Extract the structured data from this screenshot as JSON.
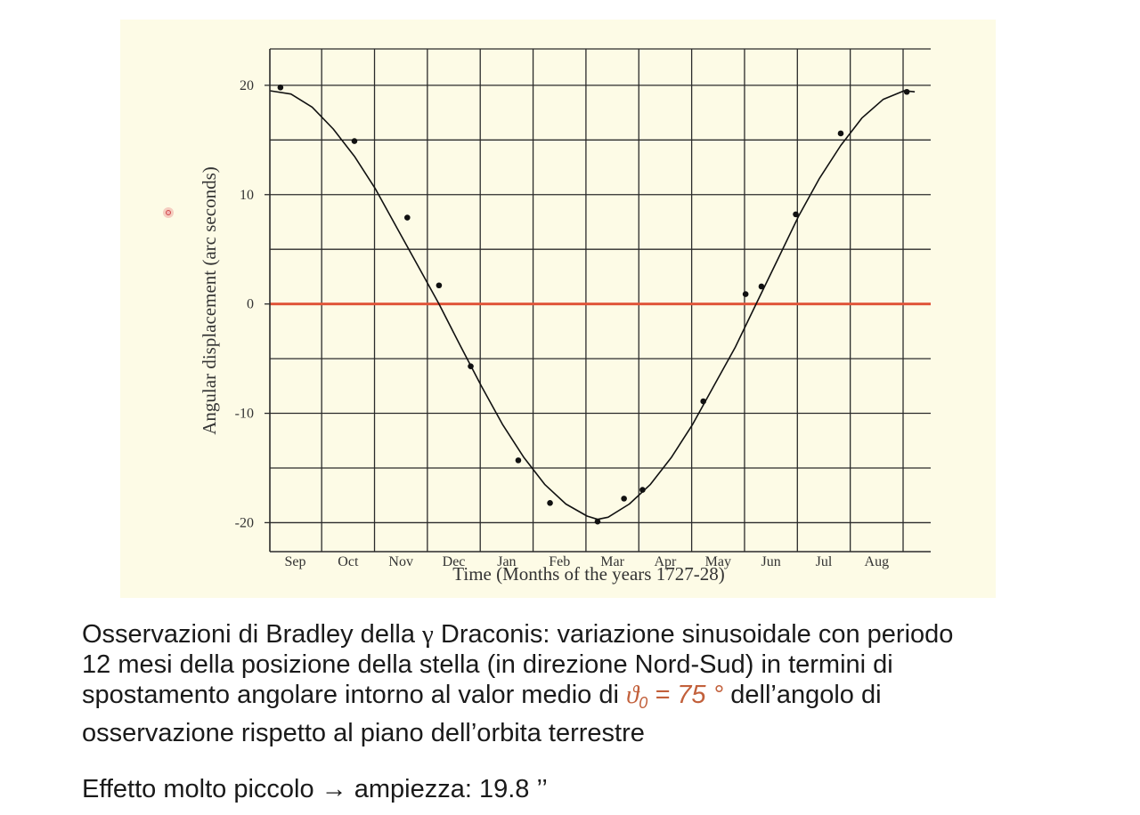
{
  "chart_data": {
    "type": "scatter",
    "xlabel": "Time  (Months of the years 1727-28)",
    "ylabel": "Angular displacement  (arc seconds)",
    "x_categories": [
      "Sep",
      "Oct",
      "Nov",
      "Dec",
      "Jan",
      "Feb",
      "Mar",
      "Apr",
      "May",
      "Jun",
      "Jul",
      "Aug"
    ],
    "xlim": [
      0,
      12.3
    ],
    "ylim": [
      -22,
      23
    ],
    "yticks": [
      20,
      10,
      0,
      -10,
      -20
    ],
    "ytick_labels": [
      "20",
      "10",
      "0",
      "-10",
      "-20"
    ],
    "grid": true,
    "reference_line": {
      "y": 0,
      "color": "#e0553a"
    },
    "series": [
      {
        "type": "scatter",
        "points": [
          {
            "x": 0.2,
            "y": 19.8
          },
          {
            "x": 1.6,
            "y": 14.9
          },
          {
            "x": 2.6,
            "y": 7.9
          },
          {
            "x": 3.2,
            "y": 1.7
          },
          {
            "x": 3.8,
            "y": -5.7
          },
          {
            "x": 4.7,
            "y": -14.3
          },
          {
            "x": 5.3,
            "y": -18.2
          },
          {
            "x": 6.2,
            "y": -19.9
          },
          {
            "x": 6.7,
            "y": -17.8
          },
          {
            "x": 7.05,
            "y": -17.0
          },
          {
            "x": 8.2,
            "y": -8.9
          },
          {
            "x": 9.0,
            "y": 0.9
          },
          {
            "x": 9.3,
            "y": 1.6
          },
          {
            "x": 9.95,
            "y": 8.2
          },
          {
            "x": 10.8,
            "y": 15.6
          },
          {
            "x": 12.05,
            "y": 19.4
          }
        ]
      },
      {
        "type": "line",
        "x": [
          0.0,
          0.4,
          0.8,
          1.2,
          1.6,
          2.0,
          2.4,
          2.8,
          3.2,
          3.6,
          4.0,
          4.4,
          4.8,
          5.2,
          5.6,
          6.0,
          6.2,
          6.4,
          6.8,
          7.2,
          7.6,
          8.0,
          8.4,
          8.8,
          9.2,
          9.6,
          10.0,
          10.4,
          10.8,
          11.2,
          11.6,
          12.0,
          12.2
        ],
        "y": [
          19.5,
          19.2,
          18.0,
          16.0,
          13.5,
          10.5,
          7.0,
          3.5,
          0.0,
          -3.8,
          -7.5,
          -11.0,
          -14.0,
          -16.5,
          -18.3,
          -19.4,
          -19.7,
          -19.5,
          -18.3,
          -16.5,
          -14.0,
          -11.0,
          -7.5,
          -4.0,
          0.0,
          4.0,
          8.0,
          11.5,
          14.5,
          17.0,
          18.7,
          19.5,
          19.4
        ]
      }
    ]
  },
  "caption": {
    "line1_a": "Osservazioni di Bradley della ",
    "gamma": "γ",
    "line1_b": " Draconis: variazione sinusoidale con periodo",
    "line2": "12 mesi della posizione della stella (in direzione Nord-Sud) in termini di",
    "line3_a": "spostamento angolare intorno al valor medio di ",
    "theta_symbol": "ϑ",
    "theta_sub": "0",
    "theta_value": " = 75 °",
    "line3_b": "  dell’angolo di",
    "line4": "osservazione rispetto al piano dell’orbita terrestre",
    "effect": "Effetto molto piccolo → ampiezza: 19.8 ’’"
  },
  "colors": {
    "panel_bg": "#fdfbe6",
    "zero_line": "#e0553a",
    "theta_highlight": "#c2603b"
  }
}
